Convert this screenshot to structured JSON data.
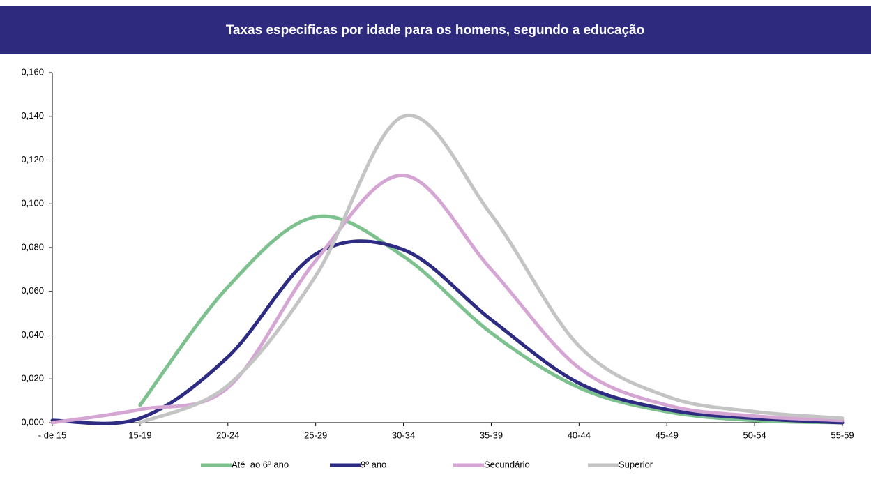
{
  "chart_data": {
    "type": "line",
    "title": "Taxas especificas por idade para os homens, segundo a educação",
    "categories": [
      "- de 15",
      "15-19",
      "20-24",
      "25-29",
      "30-34",
      "35-39",
      "40-44",
      "45-49",
      "50-54",
      "55-59"
    ],
    "series": [
      {
        "name": "Até  ao 6º ano",
        "color": "#7dc18e",
        "values": [
          null,
          0.008,
          0.062,
          0.094,
          0.076,
          0.041,
          0.016,
          0.005,
          0.001,
          0.0
        ]
      },
      {
        "name": "9º ano",
        "color": "#2e2c82",
        "values": [
          0.001,
          0.002,
          0.03,
          0.077,
          0.079,
          0.047,
          0.018,
          0.006,
          0.002,
          0.0
        ]
      },
      {
        "name": "Secundário",
        "color": "#d5a6d4",
        "values": [
          0.0,
          0.006,
          0.016,
          0.074,
          0.113,
          0.07,
          0.025,
          0.008,
          0.003,
          0.001
        ]
      },
      {
        "name": "Superior",
        "color": "#c4c4c4",
        "values": [
          null,
          0.0,
          0.017,
          0.067,
          0.14,
          0.095,
          0.035,
          0.012,
          0.005,
          0.002
        ]
      }
    ],
    "ylim": [
      0,
      0.16
    ],
    "yticks": [
      {
        "value": 0,
        "label": "0,000"
      },
      {
        "value": 0.02,
        "label": "0,020"
      },
      {
        "value": 0.04,
        "label": "0,040"
      },
      {
        "value": 0.06,
        "label": "0,060"
      },
      {
        "value": 0.08,
        "label": "0,080"
      },
      {
        "value": 0.1,
        "label": "0,100"
      },
      {
        "value": 0.12,
        "label": "0,120"
      },
      {
        "value": 0.14,
        "label": "0,140"
      },
      {
        "value": 0.16,
        "label": "0,160"
      }
    ],
    "legend": "bottom"
  }
}
